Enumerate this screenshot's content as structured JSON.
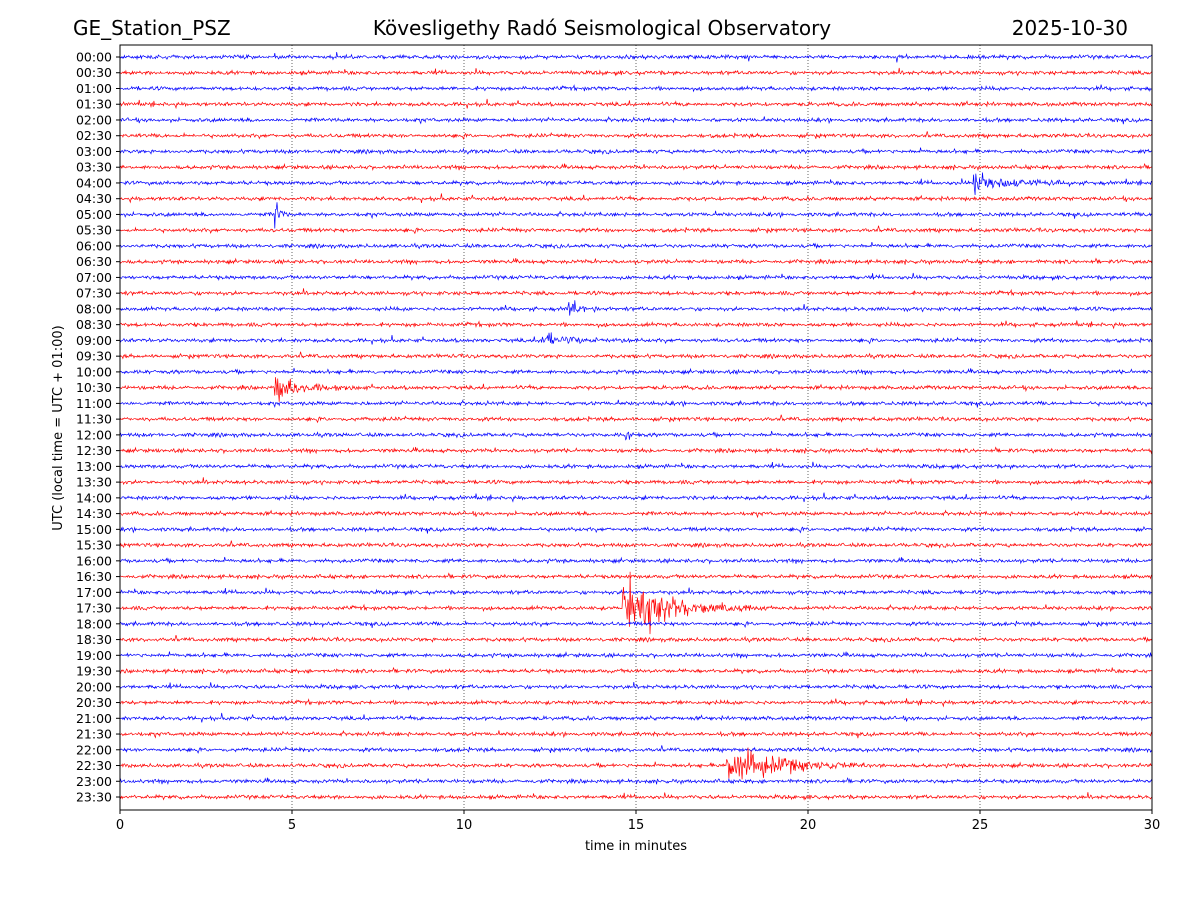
{
  "chart_data": {
    "type": "line",
    "title_left": "GE_Station_PSZ",
    "title": "Kövesligethy Radó Seismological Observatory",
    "title_right": "2025-10-30",
    "xlabel": "time in minutes",
    "ylabel": "UTC (local time = UTC + 01:00)",
    "xlim": [
      0,
      30
    ],
    "xticks": [
      0,
      5,
      10,
      15,
      20,
      25,
      30
    ],
    "grid": "vertical dotted at x ticks",
    "row_colors": [
      "#0000ff",
      "#ff0000"
    ],
    "rows": [
      "00:00",
      "00:30",
      "01:00",
      "01:30",
      "02:00",
      "02:30",
      "03:00",
      "03:30",
      "04:00",
      "04:30",
      "05:00",
      "05:30",
      "06:00",
      "06:30",
      "07:00",
      "07:30",
      "08:00",
      "08:30",
      "09:00",
      "09:30",
      "10:00",
      "10:30",
      "11:00",
      "11:30",
      "12:00",
      "12:30",
      "13:00",
      "13:30",
      "14:00",
      "14:30",
      "15:00",
      "15:30",
      "16:00",
      "16:30",
      "17:00",
      "17:30",
      "18:00",
      "18:30",
      "19:00",
      "19:30",
      "20:00",
      "20:30",
      "21:00",
      "21:30",
      "22:00",
      "22:30",
      "23:00",
      "23:30"
    ],
    "events": [
      {
        "row": "04:00",
        "start_min": 24.8,
        "duration_min": 2.2,
        "amplitude": 0.35
      },
      {
        "row": "05:00",
        "start_min": 4.5,
        "duration_min": 0.3,
        "amplitude": 0.5
      },
      {
        "row": "08:00",
        "start_min": 13.0,
        "duration_min": 1.0,
        "amplitude": 0.2
      },
      {
        "row": "09:00",
        "start_min": 12.2,
        "duration_min": 2.2,
        "amplitude": 0.18
      },
      {
        "row": "10:30",
        "start_min": 4.5,
        "duration_min": 1.8,
        "amplitude": 0.4
      },
      {
        "row": "12:00",
        "start_min": 14.7,
        "duration_min": 0.3,
        "amplitude": 0.3
      },
      {
        "row": "17:30",
        "start_min": 14.6,
        "duration_min": 3.2,
        "amplitude": 1.0
      },
      {
        "row": "22:30",
        "start_min": 17.6,
        "duration_min": 3.3,
        "amplitude": 0.75
      }
    ]
  }
}
